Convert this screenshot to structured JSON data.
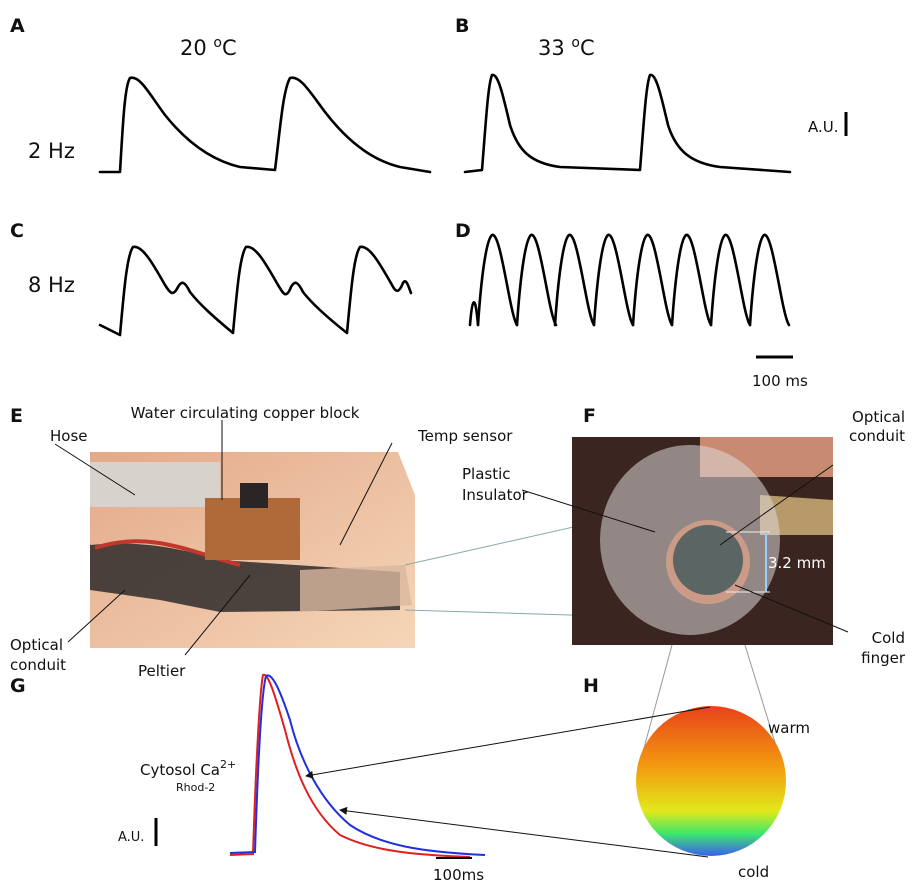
{
  "panels": {
    "a": {
      "label": "A",
      "temperature": {
        "number": "20 ",
        "degree": "o",
        "unit": "C"
      },
      "frequency": "2 Hz"
    },
    "b": {
      "label": "B",
      "temperature": {
        "number": "33 ",
        "degree": "o",
        "unit": "C"
      },
      "scale_label": "A.U."
    },
    "c": {
      "label": "C",
      "frequency": "8 Hz"
    },
    "d": {
      "label": "D",
      "scale_label": "100 ms"
    },
    "e": {
      "label": "E",
      "hose": "Hose",
      "copper_block": "Water circulating copper block",
      "temp_sensor": "Temp sensor",
      "optical_conduit": [
        "Optical",
        "conduit"
      ],
      "peltier": "Peltier"
    },
    "f": {
      "label": "F",
      "optical_conduit": [
        "Optical",
        "conduit"
      ],
      "plastic_insulator": [
        "Plastic",
        "Insulator"
      ],
      "dimension": "3.2 mm",
      "cold_finger": [
        "Cold",
        "finger"
      ]
    },
    "g": {
      "label": "G",
      "signal": {
        "name": "Cytosol Ca",
        "superscript": "2+",
        "indicator": "Rhod-2"
      },
      "scale_y": "A.U.",
      "scale_x": "100ms"
    },
    "h": {
      "label": "H",
      "warm": "warm",
      "cold": "cold"
    }
  }
}
